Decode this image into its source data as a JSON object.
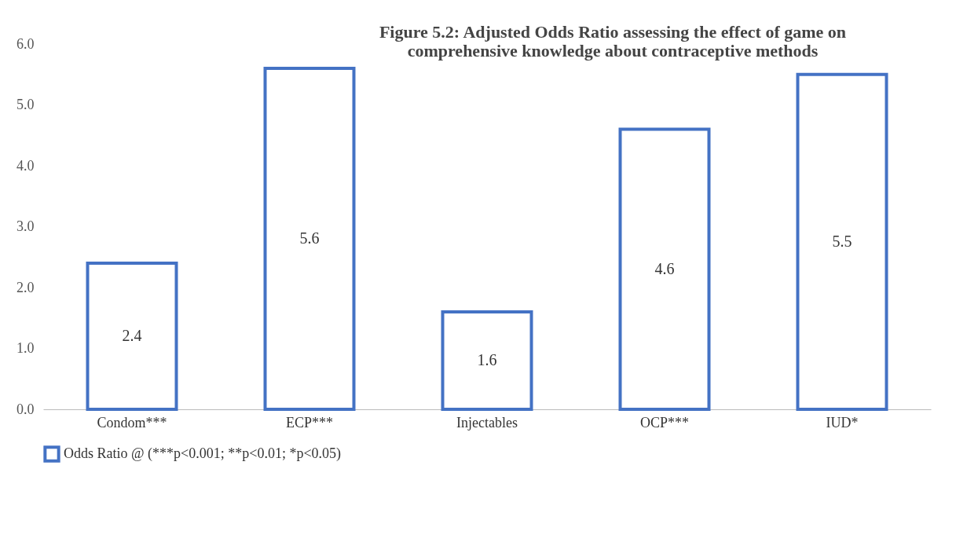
{
  "chart_data": {
    "type": "bar",
    "title": "Figure 5.2: Adjusted Odds Ratio assessing the effect of game on\ncomprehensive knowledge about contraceptive methods",
    "categories": [
      "Condom***",
      "ECP***",
      "Injectables",
      "OCP***",
      "IUD*"
    ],
    "series": [
      {
        "name": "Odds Ratio @ (***p<0.001; **p<0.01; *p<0.05)",
        "color": "#4472c4",
        "values": [
          2.4,
          5.6,
          1.6,
          4.6,
          5.5
        ]
      }
    ],
    "ylim": [
      0,
      6
    ],
    "yticks": [
      {
        "value": 0,
        "label": "0.0"
      },
      {
        "value": 1,
        "label": "1.0"
      },
      {
        "value": 2,
        "label": "2.0"
      },
      {
        "value": 3,
        "label": "3.0"
      },
      {
        "value": 4,
        "label": "4.0"
      },
      {
        "value": 5,
        "label": "5.0"
      },
      {
        "value": 6,
        "label": "6.0"
      }
    ],
    "data_labels": true,
    "grid": false,
    "legend": "bottom"
  }
}
